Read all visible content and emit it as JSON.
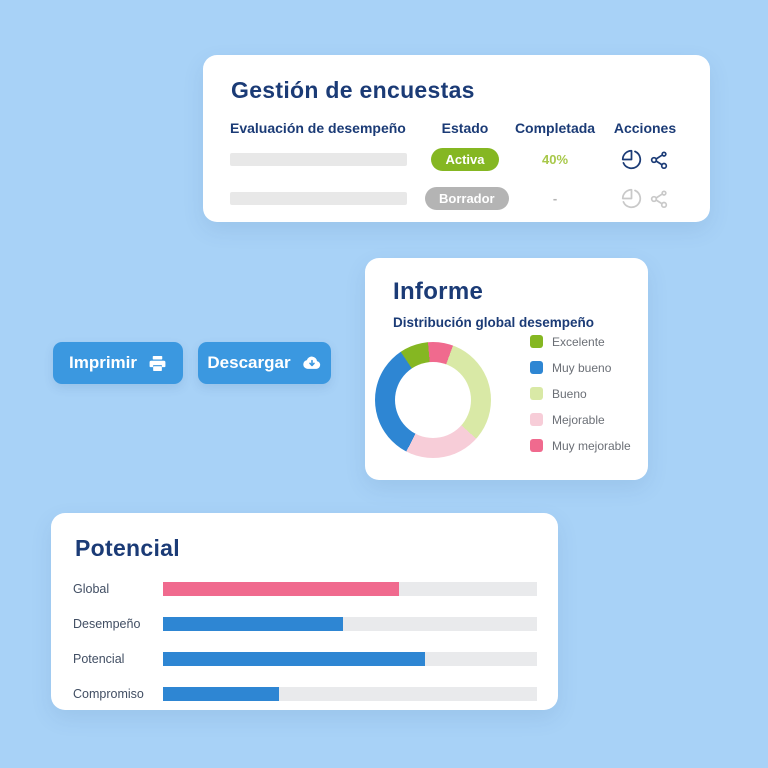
{
  "app": {
    "background_color": "#a8d2f7",
    "accent_navy": "#1b3b76",
    "button_blue": "#3b98e0"
  },
  "gestion": {
    "title": "Gestión de encuestas",
    "columns": [
      "Evaluación de desempeño",
      "Estado",
      "Completada",
      "Acciones"
    ],
    "rows": [
      {
        "estado": "Activa",
        "estado_color": "#85b722",
        "completada": "40%",
        "completada_color": "#a8c84a",
        "muted": false
      },
      {
        "estado": "Borrador",
        "estado_color": "#b4b4b4",
        "completada": "-",
        "completada_color": "#b4b4b4",
        "muted": true
      }
    ],
    "action_icons": [
      "pie-chart-icon",
      "share-icon"
    ]
  },
  "buttons": {
    "imprimir": "Imprimir",
    "imprimir_icon": "printer-icon",
    "descargar": "Descargar",
    "descargar_icon": "cloud-download-icon"
  },
  "informe": {
    "title": "Informe",
    "subtitle": "Distribución global desempeño"
  },
  "potencial": {
    "title": "Potencial"
  },
  "chart_data": [
    {
      "type": "pie",
      "donut": true,
      "title": "Distribución global desempeño",
      "labels": [
        "Excelente",
        "Muy bueno",
        "Bueno",
        "Mejorable",
        "Muy mejorable"
      ],
      "values": [
        8,
        33,
        31,
        21,
        7
      ],
      "colors": [
        "#85b722",
        "#2e86d3",
        "#d9e9a6",
        "#f7cdd8",
        "#f06a8e"
      ],
      "draw_order_clockwise_from_top": [
        4,
        2,
        3,
        1,
        0
      ],
      "start_angle_deg": -5,
      "legend_position": "right"
    },
    {
      "type": "bar",
      "orientation": "horizontal",
      "title": "Potencial",
      "categories": [
        "Global",
        "Desempeño",
        "Potencial",
        "Compromiso"
      ],
      "values": [
        63,
        48,
        70,
        31
      ],
      "colors": [
        "#f06a8e",
        "#2e86d3",
        "#2e86d3",
        "#2e86d3"
      ],
      "xlim": [
        0,
        100
      ],
      "track_color": "#e9eaec",
      "grid": false
    }
  ]
}
